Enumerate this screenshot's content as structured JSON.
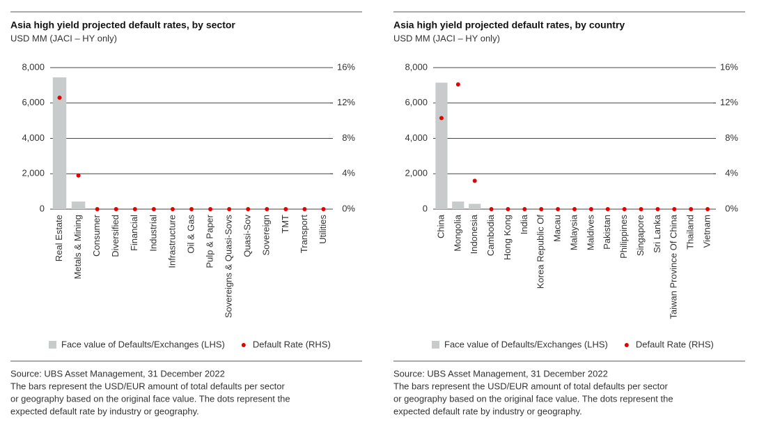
{
  "chart_data": [
    {
      "type": "bar",
      "title": "Asia high yield projected default rates, by sector",
      "subtitle": "USD MM (JACI – HY only)",
      "categories": [
        "Real Estate",
        "Metals & Mining",
        "Consumer",
        "Diversified",
        "Financial",
        "Industrial",
        "Infrastructure",
        "Oil & Gas",
        "Pulp & Paper",
        "Sovereigns & Quasi-Sovs",
        "Quasi-Sov",
        "Sovereign",
        "TMT",
        "Transport",
        "Utilities"
      ],
      "series": [
        {
          "name": "Face value of Defaults/Exchanges (LHS)",
          "color": "#c8cbcb",
          "values": [
            7450,
            430,
            0,
            0,
            0,
            0,
            0,
            0,
            0,
            0,
            0,
            0,
            0,
            0,
            0
          ]
        },
        {
          "name": "Default Rate (RHS)",
          "color": "#e60000",
          "axis": "y2",
          "values": [
            12.6,
            3.8,
            0,
            0,
            0,
            0,
            0,
            0,
            0,
            0,
            0,
            0,
            0,
            0,
            0
          ]
        }
      ],
      "ylim": [
        0,
        8000
      ],
      "yticks": [
        0,
        {
          "value": 2000,
          "label": "2,000"
        },
        {
          "value": 4000,
          "label": "4,000"
        },
        {
          "value": 6000,
          "label": "6,000"
        },
        {
          "value": 8000,
          "label": "8,000"
        }
      ],
      "y2lim": [
        0,
        16
      ],
      "y2ticks": [
        {
          "value": 0,
          "label": "0%"
        },
        {
          "value": 4,
          "label": "4%"
        },
        {
          "value": 8,
          "label": "8%"
        },
        {
          "value": 12,
          "label": "12%"
        },
        {
          "value": 16,
          "label": "16%"
        }
      ],
      "grid": true,
      "source": "Source: UBS Asset Management, 31 December 2022",
      "note": [
        "The bars represent the USD/EUR amount of total defaults per sector",
        "or geography based on the original face value. The dots represent the",
        "expected default rate by industry or geography."
      ]
    },
    {
      "type": "bar",
      "title": "Asia high yield projected default rates, by country",
      "subtitle": "USD MM (JACI – HY only)",
      "categories": [
        "China",
        "Mongolia",
        "Indonesia",
        "Cambodia",
        "Hong Kong",
        "India",
        "Korea Republic Of",
        "Macau",
        "Malaysia",
        "Maldives",
        "Pakistan",
        "Philippines",
        "Singapore",
        "Sri Lanka",
        "Taiwan Province Of China",
        "Thailand",
        "Vietnam"
      ],
      "series": [
        {
          "name": "Face value of Defaults/Exchanges (LHS)",
          "color": "#c8cbcb",
          "values": [
            7150,
            430,
            300,
            0,
            0,
            0,
            0,
            0,
            0,
            0,
            0,
            0,
            0,
            0,
            0,
            0,
            0
          ]
        },
        {
          "name": "Default Rate (RHS)",
          "color": "#e60000",
          "axis": "y2",
          "values": [
            10.3,
            14.1,
            3.2,
            0,
            0,
            0,
            0,
            0,
            0,
            0,
            0,
            0,
            0,
            0,
            0,
            0,
            0
          ]
        }
      ],
      "ylim": [
        0,
        8000
      ],
      "yticks": [
        0,
        {
          "value": 2000,
          "label": "2,000"
        },
        {
          "value": 4000,
          "label": "4,000"
        },
        {
          "value": 6000,
          "label": "6,000"
        },
        {
          "value": 8000,
          "label": "8,000"
        }
      ],
      "y2lim": [
        0,
        16
      ],
      "y2ticks": [
        {
          "value": 0,
          "label": "0%"
        },
        {
          "value": 4,
          "label": "4%"
        },
        {
          "value": 8,
          "label": "8%"
        },
        {
          "value": 12,
          "label": "12%"
        },
        {
          "value": 16,
          "label": "16%"
        }
      ],
      "grid": true,
      "source": "Source: UBS Asset Management, 31 December 2022",
      "note": [
        "The bars represent the USD/EUR amount of total defaults per sector",
        "or geography based on the original face value. The dots represent the",
        "expected default rate by industry or geography."
      ]
    }
  ]
}
